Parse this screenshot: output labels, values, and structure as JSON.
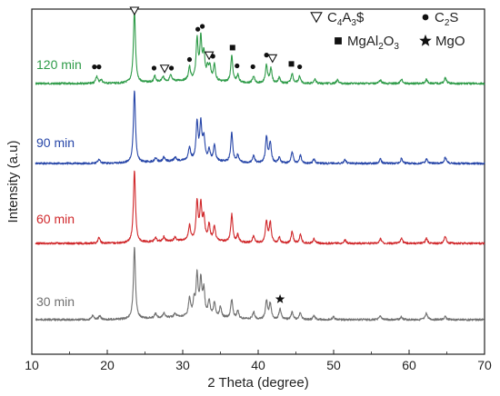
{
  "chart_data": {
    "type": "line",
    "xlabel": "2 Theta (degree)",
    "ylabel": "Intensity (a.u)",
    "xlim": [
      10,
      70
    ],
    "x_ticks": [
      10,
      20,
      30,
      40,
      50,
      60,
      70
    ],
    "y_ticks_shown": false,
    "grid": false,
    "series": [
      {
        "name": "120 min",
        "color": "#2e9b48",
        "baseline_rank": 3,
        "peaks": [
          [
            18.6,
            0.1
          ],
          [
            19.2,
            0.05
          ],
          [
            23.6,
            1.0
          ],
          [
            26.3,
            0.08
          ],
          [
            27.4,
            0.07
          ],
          [
            28.4,
            0.08
          ],
          [
            30.9,
            0.18
          ],
          [
            31.9,
            0.55
          ],
          [
            32.4,
            0.55
          ],
          [
            32.8,
            0.35
          ],
          [
            33.3,
            0.15
          ],
          [
            33.6,
            0.18
          ],
          [
            34.2,
            0.22
          ],
          [
            36.5,
            0.36
          ],
          [
            37.3,
            0.1
          ],
          [
            39.4,
            0.1
          ],
          [
            41.1,
            0.25
          ],
          [
            41.7,
            0.2
          ],
          [
            42.8,
            0.08
          ],
          [
            44.5,
            0.14
          ],
          [
            45.5,
            0.1
          ],
          [
            47.5,
            0.06
          ],
          [
            50.5,
            0.05
          ],
          [
            56.2,
            0.05
          ],
          [
            59.0,
            0.06
          ],
          [
            62.3,
            0.06
          ],
          [
            64.8,
            0.08
          ]
        ],
        "markers": [
          {
            "x": 18.3,
            "symbol": "circle"
          },
          {
            "x": 18.9,
            "symbol": "circle"
          },
          {
            "x": 23.6,
            "symbol": "triangle"
          },
          {
            "x": 26.2,
            "symbol": "circle"
          },
          {
            "x": 27.6,
            "symbol": "triangle"
          },
          {
            "x": 28.5,
            "symbol": "circle"
          },
          {
            "x": 30.9,
            "symbol": "circle"
          },
          {
            "x": 32.0,
            "symbol": "circle"
          },
          {
            "x": 32.6,
            "symbol": "circle"
          },
          {
            "x": 33.5,
            "symbol": "triangle"
          },
          {
            "x": 34.0,
            "symbol": "circle"
          },
          {
            "x": 36.6,
            "symbol": "square"
          },
          {
            "x": 37.2,
            "symbol": "circle"
          },
          {
            "x": 39.3,
            "symbol": "circle"
          },
          {
            "x": 41.1,
            "symbol": "circle"
          },
          {
            "x": 41.9,
            "symbol": "triangle"
          },
          {
            "x": 44.4,
            "symbol": "square"
          },
          {
            "x": 45.5,
            "symbol": "circle"
          }
        ]
      },
      {
        "name": "90 min",
        "color": "#2746a8",
        "baseline_rank": 2,
        "peaks": [
          [
            18.9,
            0.06
          ],
          [
            23.6,
            1.0
          ],
          [
            26.4,
            0.06
          ],
          [
            27.5,
            0.06
          ],
          [
            29.0,
            0.05
          ],
          [
            30.9,
            0.18
          ],
          [
            31.9,
            0.52
          ],
          [
            32.4,
            0.5
          ],
          [
            32.8,
            0.3
          ],
          [
            33.5,
            0.15
          ],
          [
            34.2,
            0.22
          ],
          [
            36.5,
            0.4
          ],
          [
            37.3,
            0.1
          ],
          [
            39.4,
            0.1
          ],
          [
            41.1,
            0.36
          ],
          [
            41.6,
            0.28
          ],
          [
            42.8,
            0.08
          ],
          [
            44.5,
            0.16
          ],
          [
            45.6,
            0.12
          ],
          [
            47.4,
            0.06
          ],
          [
            51.5,
            0.05
          ],
          [
            56.2,
            0.06
          ],
          [
            59.0,
            0.07
          ],
          [
            62.3,
            0.06
          ],
          [
            64.8,
            0.09
          ]
        ],
        "markers": []
      },
      {
        "name": "60 min",
        "color": "#d0282b",
        "baseline_rank": 1,
        "peaks": [
          [
            18.9,
            0.08
          ],
          [
            23.6,
            1.0
          ],
          [
            26.4,
            0.06
          ],
          [
            27.5,
            0.06
          ],
          [
            29.0,
            0.05
          ],
          [
            30.9,
            0.2
          ],
          [
            31.9,
            0.52
          ],
          [
            32.4,
            0.48
          ],
          [
            32.8,
            0.3
          ],
          [
            33.5,
            0.22
          ],
          [
            34.2,
            0.2
          ],
          [
            36.5,
            0.38
          ],
          [
            37.3,
            0.1
          ],
          [
            39.4,
            0.1
          ],
          [
            41.1,
            0.3
          ],
          [
            41.6,
            0.28
          ],
          [
            42.8,
            0.08
          ],
          [
            44.5,
            0.16
          ],
          [
            45.6,
            0.12
          ],
          [
            47.4,
            0.06
          ],
          [
            51.5,
            0.05
          ],
          [
            56.2,
            0.06
          ],
          [
            59.0,
            0.07
          ],
          [
            62.3,
            0.07
          ],
          [
            64.8,
            0.1
          ]
        ],
        "markers": []
      },
      {
        "name": "30 min",
        "color": "#707070",
        "baseline_rank": 0,
        "peaks": [
          [
            18.1,
            0.06
          ],
          [
            19.0,
            0.05
          ],
          [
            23.6,
            1.0
          ],
          [
            26.4,
            0.06
          ],
          [
            27.5,
            0.07
          ],
          [
            29.0,
            0.05
          ],
          [
            30.9,
            0.25
          ],
          [
            31.5,
            0.2
          ],
          [
            31.9,
            0.55
          ],
          [
            32.4,
            0.48
          ],
          [
            32.8,
            0.35
          ],
          [
            33.5,
            0.22
          ],
          [
            34.2,
            0.2
          ],
          [
            35.0,
            0.15
          ],
          [
            36.5,
            0.26
          ],
          [
            37.3,
            0.1
          ],
          [
            39.4,
            0.1
          ],
          [
            41.1,
            0.26
          ],
          [
            41.6,
            0.22
          ],
          [
            42.9,
            0.15
          ],
          [
            44.5,
            0.1
          ],
          [
            45.6,
            0.1
          ],
          [
            47.4,
            0.05
          ],
          [
            50.0,
            0.04
          ],
          [
            56.2,
            0.05
          ],
          [
            59.0,
            0.04
          ],
          [
            62.3,
            0.09
          ],
          [
            64.8,
            0.04
          ]
        ],
        "markers": [
          {
            "x": 42.9,
            "symbol": "star"
          }
        ]
      }
    ],
    "legend": {
      "placement": "top-right",
      "items": [
        {
          "symbol": "triangle",
          "label": "C",
          "parts": [
            {
              "t": "C"
            },
            {
              "t": "4",
              "sub": true
            },
            {
              "t": "A"
            },
            {
              "t": "3",
              "sub": true
            },
            {
              "t": "$"
            }
          ]
        },
        {
          "symbol": "circle",
          "label": "C2S",
          "parts": [
            {
              "t": "C"
            },
            {
              "t": "2",
              "sub": true
            },
            {
              "t": "S"
            }
          ]
        },
        {
          "symbol": "square",
          "label": "MgAl2O3",
          "parts": [
            {
              "t": "MgAl"
            },
            {
              "t": "2",
              "sub": true
            },
            {
              "t": "O"
            },
            {
              "t": "3",
              "sub": true
            }
          ]
        },
        {
          "symbol": "star",
          "label": "MgO",
          "parts": [
            {
              "t": "MgO"
            }
          ]
        }
      ]
    }
  }
}
